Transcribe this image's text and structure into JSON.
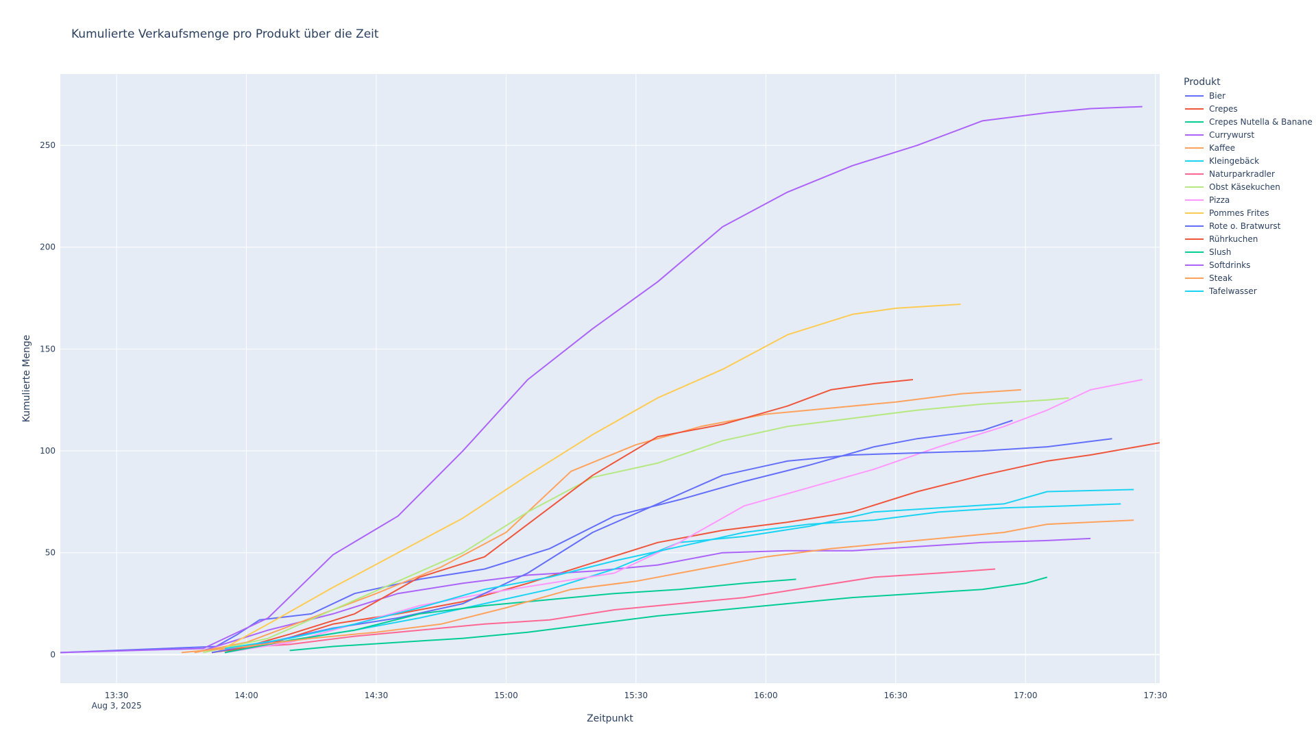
{
  "chart_data": {
    "type": "line",
    "title": "Kumulierte Verkaufsmenge pro Produkt über die Zeit",
    "xlabel": "Zeitpunkt",
    "ylabel": "Kumulierte Menge",
    "legend_title": "Produkt",
    "legend_position": "right",
    "grid": true,
    "x_date": "Aug 3, 2025",
    "xlim": [
      "13:17",
      "17:31"
    ],
    "ylim": [
      -14,
      285
    ],
    "x_ticks": [
      "13:30",
      "14:00",
      "14:30",
      "15:00",
      "15:30",
      "16:00",
      "16:30",
      "17:00",
      "17:30"
    ],
    "y_ticks": [
      0,
      50,
      100,
      150,
      200,
      250
    ],
    "series": [
      {
        "name": "Bier",
        "color": "#636efa",
        "x": [
          "13:17",
          "13:53",
          "13:58",
          "14:03",
          "14:15",
          "14:25",
          "14:40",
          "14:55",
          "15:10",
          "15:25",
          "15:40",
          "15:55",
          "16:10",
          "16:25",
          "16:35",
          "16:50",
          "16:57"
        ],
        "y": [
          1,
          4,
          10,
          17,
          20,
          30,
          37,
          42,
          52,
          68,
          76,
          85,
          93,
          102,
          106,
          110,
          115
        ]
      },
      {
        "name": "Crepes",
        "color": "#ef553b",
        "x": [
          "13:52",
          "14:05",
          "14:20",
          "14:35",
          "14:50",
          "15:05",
          "15:20",
          "15:35",
          "15:50",
          "16:05",
          "16:20",
          "16:35",
          "16:50",
          "17:05",
          "17:15",
          "17:31"
        ],
        "y": [
          1,
          5,
          15,
          20,
          26,
          35,
          45,
          55,
          61,
          65,
          70,
          80,
          88,
          95,
          98,
          104
        ]
      },
      {
        "name": "Crepes Nutella & Banane",
        "color": "#00cc96",
        "x": [
          "14:10",
          "14:20",
          "14:35",
          "14:50",
          "15:05",
          "15:20",
          "15:35",
          "15:50",
          "16:05",
          "16:20",
          "16:35",
          "16:50",
          "17:00",
          "17:05"
        ],
        "y": [
          2,
          4,
          6,
          8,
          11,
          15,
          19,
          22,
          25,
          28,
          30,
          32,
          35,
          38
        ]
      },
      {
        "name": "Currywurst",
        "color": "#ab63fa",
        "x": [
          "13:50",
          "14:05",
          "14:20",
          "14:35",
          "14:50",
          "15:05",
          "15:20",
          "15:35",
          "15:50",
          "16:05",
          "16:20",
          "16:35",
          "16:50",
          "17:05",
          "17:15"
        ],
        "y": [
          2,
          12,
          20,
          30,
          35,
          39,
          41,
          44,
          50,
          51,
          51,
          53,
          55,
          56,
          57
        ]
      },
      {
        "name": "Kaffee",
        "color": "#ffa15a",
        "x": [
          "13:48",
          "14:00",
          "14:15",
          "14:30",
          "14:45",
          "15:00",
          "15:15",
          "15:30",
          "15:45",
          "16:00",
          "16:15",
          "16:30",
          "16:45",
          "16:59"
        ],
        "y": [
          1,
          6,
          18,
          30,
          43,
          60,
          90,
          103,
          112,
          118,
          121,
          124,
          128,
          130
        ]
      },
      {
        "name": "Kleingebäck",
        "color": "#19d3f3",
        "x": [
          "13:55",
          "14:10",
          "14:25",
          "14:40",
          "14:55",
          "15:10",
          "15:25",
          "15:40",
          "15:55",
          "16:10",
          "16:25",
          "16:40",
          "16:55",
          "17:05",
          "17:25"
        ],
        "y": [
          1,
          7,
          12,
          18,
          25,
          32,
          42,
          55,
          58,
          63,
          70,
          72,
          74,
          80,
          81
        ]
      },
      {
        "name": "Naturparkradler",
        "color": "#ff6692",
        "x": [
          "13:55",
          "14:10",
          "14:25",
          "14:40",
          "14:55",
          "15:10",
          "15:25",
          "15:40",
          "15:55",
          "16:10",
          "16:25",
          "16:40",
          "16:53"
        ],
        "y": [
          3,
          5,
          9,
          12,
          15,
          17,
          22,
          25,
          28,
          33,
          38,
          40,
          42
        ]
      },
      {
        "name": "Obst Käsekuchen",
        "color": "#b6e880",
        "x": [
          "13:50",
          "14:05",
          "14:20",
          "14:35",
          "14:50",
          "15:05",
          "15:20",
          "15:35",
          "15:50",
          "16:05",
          "16:20",
          "16:35",
          "16:50",
          "17:05",
          "17:10"
        ],
        "y": [
          1,
          8,
          22,
          36,
          50,
          70,
          87,
          94,
          105,
          112,
          116,
          120,
          123,
          125,
          126
        ]
      },
      {
        "name": "Pizza",
        "color": "#ff97ff",
        "x": [
          "13:55",
          "14:10",
          "14:25",
          "14:40",
          "14:55",
          "15:10",
          "15:25",
          "15:40",
          "15:55",
          "16:10",
          "16:25",
          "16:40",
          "16:55",
          "17:05",
          "17:15",
          "17:27"
        ],
        "y": [
          1,
          6,
          15,
          24,
          30,
          35,
          40,
          55,
          73,
          82,
          91,
          102,
          112,
          120,
          130,
          135
        ]
      },
      {
        "name": "Pommes Frites",
        "color": "#fecb52",
        "x": [
          "13:53",
          "14:05",
          "14:20",
          "14:35",
          "14:50",
          "15:05",
          "15:20",
          "15:35",
          "15:50",
          "16:05",
          "16:20",
          "16:30",
          "16:45"
        ],
        "y": [
          1,
          15,
          33,
          50,
          67,
          88,
          108,
          126,
          140,
          157,
          167,
          170,
          172
        ]
      },
      {
        "name": "Rote o. Bratwurst",
        "color": "#636efa",
        "x": [
          "13:52",
          "14:05",
          "14:20",
          "14:35",
          "14:50",
          "15:05",
          "15:20",
          "15:35",
          "15:50",
          "16:05",
          "16:20",
          "16:35",
          "16:50",
          "17:05",
          "17:20"
        ],
        "y": [
          1,
          6,
          13,
          18,
          25,
          40,
          60,
          74,
          88,
          95,
          98,
          99,
          100,
          102,
          106
        ]
      },
      {
        "name": "Rührkuchen",
        "color": "#ef553b",
        "x": [
          "13:55",
          "14:10",
          "14:25",
          "14:40",
          "14:55",
          "15:10",
          "15:20",
          "15:35",
          "15:50",
          "16:05",
          "16:15",
          "16:25",
          "16:34"
        ],
        "y": [
          1,
          10,
          20,
          38,
          48,
          72,
          88,
          107,
          113,
          122,
          130,
          133,
          135
        ]
      },
      {
        "name": "Slush",
        "color": "#00cc96",
        "x": [
          "13:55",
          "14:10",
          "14:25",
          "14:40",
          "14:55",
          "15:10",
          "15:25",
          "15:40",
          "15:55",
          "16:07"
        ],
        "y": [
          1,
          7,
          12,
          20,
          24,
          27,
          30,
          32,
          35,
          37
        ]
      },
      {
        "name": "Softdrinks",
        "color": "#ab63fa",
        "x": [
          "13:17",
          "13:50",
          "14:05",
          "14:20",
          "14:35",
          "14:50",
          "15:05",
          "15:20",
          "15:35",
          "15:50",
          "16:05",
          "16:20",
          "16:35",
          "16:50",
          "17:05",
          "17:15",
          "17:27"
        ],
        "y": [
          1,
          3,
          18,
          49,
          68,
          100,
          135,
          160,
          183,
          210,
          227,
          240,
          250,
          262,
          266,
          268,
          269
        ]
      },
      {
        "name": "Steak",
        "color": "#ffa15a",
        "x": [
          "13:45",
          "14:00",
          "14:15",
          "14:30",
          "14:45",
          "15:00",
          "15:15",
          "15:30",
          "15:45",
          "16:00",
          "16:15",
          "16:30",
          "16:45",
          "16:55",
          "17:05",
          "17:25"
        ],
        "y": [
          1,
          4,
          8,
          11,
          15,
          23,
          32,
          36,
          42,
          48,
          52,
          55,
          58,
          60,
          64,
          66
        ]
      },
      {
        "name": "Tafelwasser",
        "color": "#19d3f3",
        "x": [
          "13:55",
          "14:10",
          "14:25",
          "14:40",
          "14:55",
          "15:10",
          "15:25",
          "15:40",
          "15:55",
          "16:10",
          "16:25",
          "16:40",
          "16:55",
          "17:10",
          "17:22"
        ],
        "y": [
          3,
          8,
          15,
          23,
          32,
          38,
          46,
          53,
          60,
          64,
          66,
          70,
          72,
          73,
          74
        ]
      }
    ]
  }
}
